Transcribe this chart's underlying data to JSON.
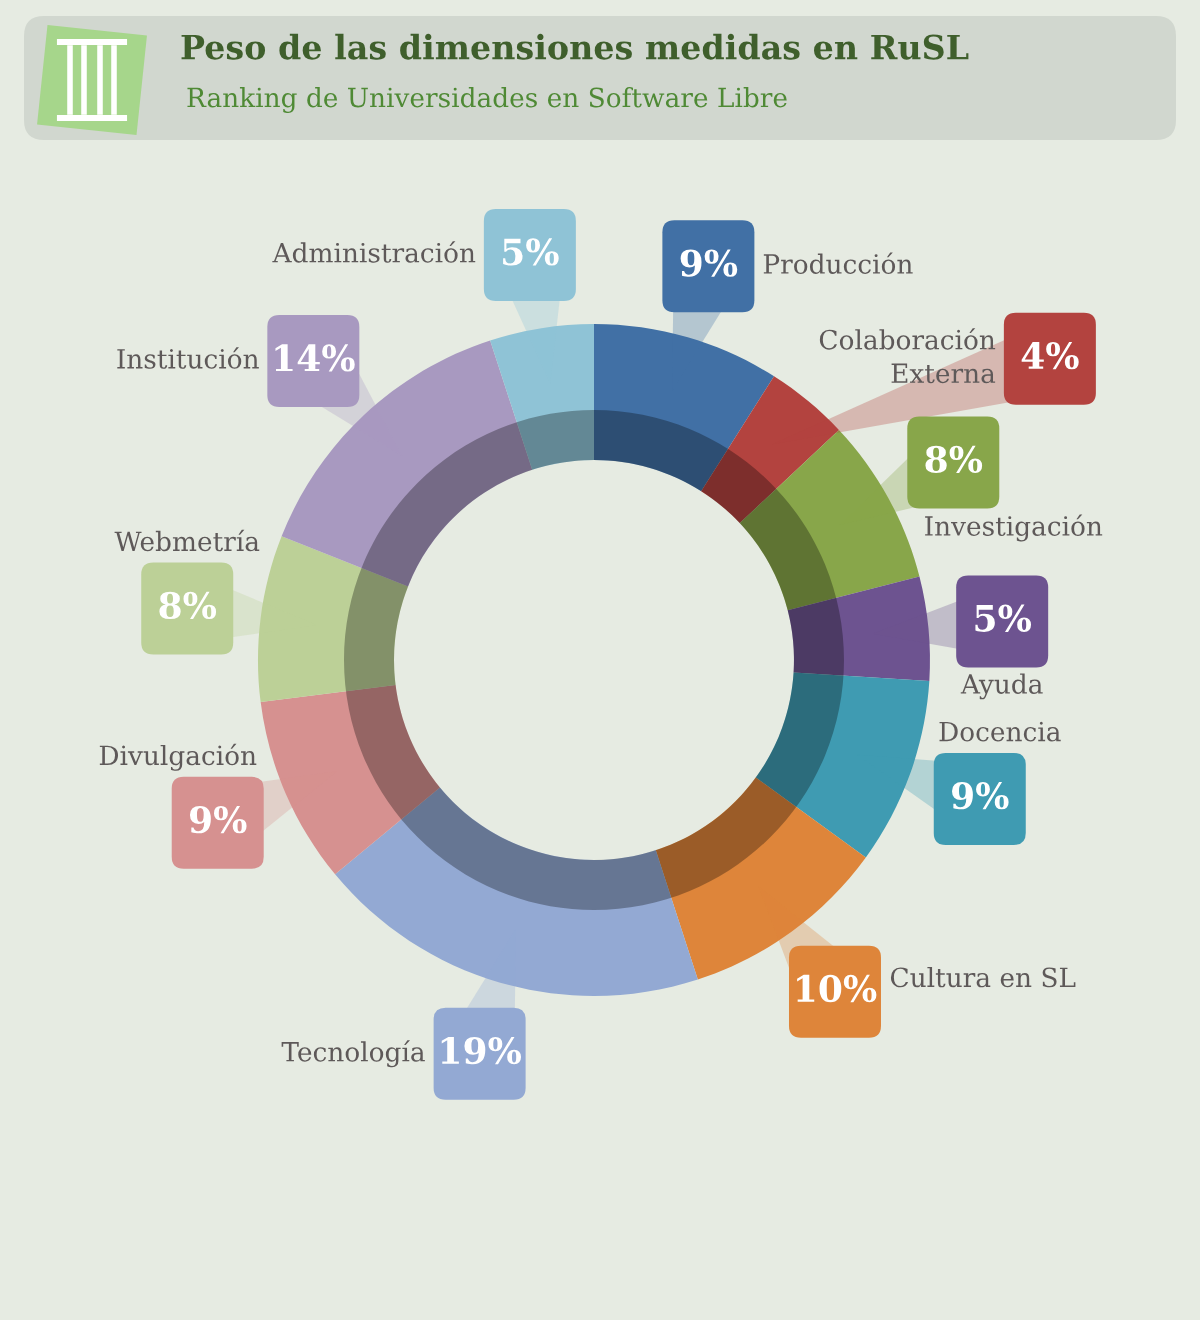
{
  "chart_data": {
    "type": "donut",
    "title": "Peso de las dimensiones medidas en RuSL",
    "subtitle": "Ranking de Universidades en Software Libre",
    "categories": [
      "Producción",
      "Colaboración Externa",
      "Investigación",
      "Ayuda",
      "Docencia",
      "Cultura en SL",
      "Tecnología",
      "Divulgación",
      "Webmetría",
      "Institución",
      "Administración"
    ],
    "values": [
      9,
      4,
      8,
      5,
      9,
      10,
      19,
      9,
      8,
      14,
      5
    ],
    "colors": [
      "#4170a5",
      "#b3433f",
      "#88a64a",
      "#6d5390",
      "#3f9bb2",
      "#de853a",
      "#93a9d3",
      "#d69190",
      "#bcd097",
      "#a899c0",
      "#8fc3d6"
    ],
    "value_labels": [
      "9%",
      "4%",
      "8%",
      "5%",
      "9%",
      "10%",
      "19%",
      "9%",
      "8%",
      "14%",
      "5%"
    ]
  }
}
